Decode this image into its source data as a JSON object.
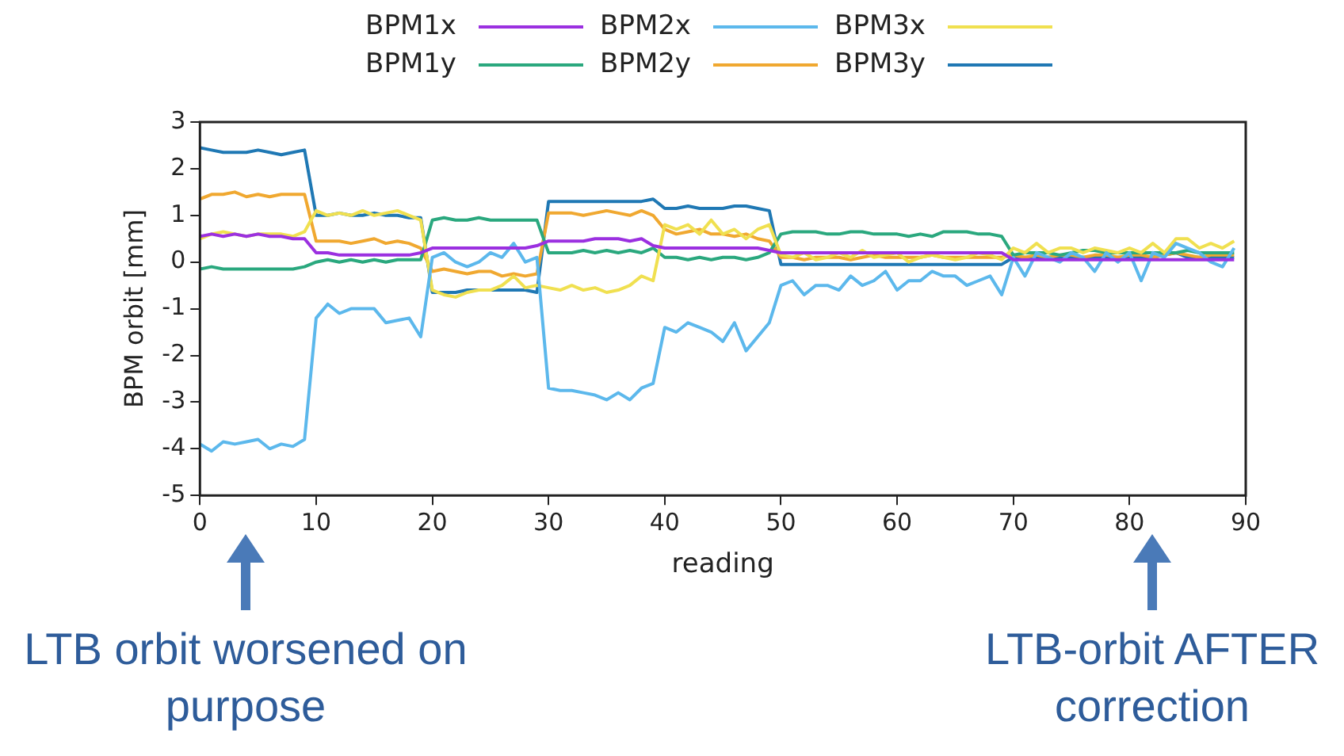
{
  "chart_data": {
    "type": "line",
    "xlabel": "reading",
    "ylabel": "BPM orbit [mm]",
    "xlim": [
      0,
      90
    ],
    "xticks": [
      0,
      10,
      20,
      30,
      40,
      50,
      60,
      70,
      80,
      90
    ],
    "ylim": [
      -5,
      3
    ],
    "yticks": [
      -5,
      -4,
      -3,
      -2,
      -1,
      0,
      1,
      2,
      3
    ],
    "grid": false,
    "legend": "top",
    "marker": "none",
    "line_style": "solid",
    "x": [
      0,
      1,
      2,
      3,
      4,
      5,
      6,
      7,
      8,
      9,
      10,
      11,
      12,
      13,
      14,
      15,
      16,
      17,
      18,
      19,
      20,
      21,
      22,
      23,
      24,
      25,
      26,
      27,
      28,
      29,
      30,
      31,
      32,
      33,
      34,
      35,
      36,
      37,
      38,
      39,
      40,
      41,
      42,
      43,
      44,
      45,
      46,
      47,
      48,
      49,
      50,
      51,
      52,
      53,
      54,
      55,
      56,
      57,
      58,
      59,
      60,
      61,
      62,
      63,
      64,
      65,
      66,
      67,
      68,
      69,
      70,
      71,
      72,
      73,
      74,
      75,
      76,
      77,
      78,
      79,
      80,
      81,
      82,
      83,
      84,
      85,
      86,
      87,
      88,
      89
    ],
    "series": [
      {
        "name": "BPM1x",
        "color": "#9b30e0",
        "values": [
          0.55,
          0.6,
          0.55,
          0.6,
          0.55,
          0.6,
          0.55,
          0.55,
          0.5,
          0.5,
          0.2,
          0.2,
          0.15,
          0.15,
          0.15,
          0.15,
          0.15,
          0.15,
          0.15,
          0.2,
          0.3,
          0.3,
          0.3,
          0.3,
          0.3,
          0.3,
          0.3,
          0.3,
          0.3,
          0.35,
          0.45,
          0.45,
          0.45,
          0.45,
          0.5,
          0.5,
          0.5,
          0.45,
          0.5,
          0.35,
          0.3,
          0.3,
          0.3,
          0.3,
          0.3,
          0.3,
          0.3,
          0.3,
          0.3,
          0.25,
          0.2,
          0.2,
          0.2,
          0.2,
          0.2,
          0.2,
          0.2,
          0.2,
          0.2,
          0.2,
          0.2,
          0.2,
          0.2,
          0.2,
          0.2,
          0.2,
          0.2,
          0.2,
          0.2,
          0.2,
          0.05,
          0.05,
          0.05,
          0.05,
          0.05,
          0.05,
          0.05,
          0.05,
          0.05,
          0.05,
          0.05,
          0.05,
          0.05,
          0.05,
          0.05,
          0.05,
          0.05,
          0.05,
          0.05,
          0.05
        ]
      },
      {
        "name": "BPM2x",
        "color": "#5cb8ec",
        "values": [
          -3.9,
          -4.05,
          -3.85,
          -3.9,
          -3.85,
          -3.8,
          -4.0,
          -3.9,
          -3.95,
          -3.8,
          -1.2,
          -0.9,
          -1.1,
          -1.0,
          -1.0,
          -1.0,
          -1.3,
          -1.25,
          -1.2,
          -1.6,
          0.1,
          0.2,
          0.0,
          -0.1,
          0.0,
          0.2,
          0.1,
          0.4,
          0.0,
          0.1,
          -2.7,
          -2.75,
          -2.75,
          -2.8,
          -2.85,
          -2.95,
          -2.8,
          -2.95,
          -2.7,
          -2.6,
          -1.4,
          -1.5,
          -1.3,
          -1.4,
          -1.5,
          -1.7,
          -1.3,
          -1.9,
          -1.6,
          -1.3,
          -0.5,
          -0.4,
          -0.7,
          -0.5,
          -0.5,
          -0.6,
          -0.3,
          -0.5,
          -0.4,
          -0.2,
          -0.6,
          -0.4,
          -0.4,
          -0.2,
          -0.3,
          -0.3,
          -0.5,
          -0.4,
          -0.3,
          -0.7,
          0.1,
          -0.3,
          0.2,
          0.1,
          0.0,
          0.2,
          0.1,
          -0.2,
          0.2,
          0.0,
          0.2,
          -0.4,
          0.2,
          0.1,
          0.4,
          0.3,
          0.2,
          0.0,
          -0.1,
          0.3
        ]
      },
      {
        "name": "BPM3x",
        "color": "#f0e050",
        "values": [
          0.5,
          0.6,
          0.65,
          0.6,
          0.55,
          0.6,
          0.6,
          0.6,
          0.55,
          0.65,
          1.1,
          1.0,
          1.05,
          1.0,
          1.1,
          1.0,
          1.05,
          1.1,
          1.0,
          0.9,
          -0.6,
          -0.7,
          -0.75,
          -0.65,
          -0.6,
          -0.6,
          -0.5,
          -0.3,
          -0.55,
          -0.5,
          -0.55,
          -0.6,
          -0.5,
          -0.6,
          -0.55,
          -0.65,
          -0.6,
          -0.5,
          -0.3,
          -0.4,
          0.8,
          0.7,
          0.8,
          0.6,
          0.9,
          0.6,
          0.7,
          0.5,
          0.7,
          0.8,
          0.15,
          0.1,
          0.2,
          0.05,
          0.1,
          0.2,
          0.1,
          0.25,
          0.1,
          0.15,
          0.2,
          0.0,
          0.1,
          0.15,
          0.1,
          0.05,
          0.1,
          0.2,
          0.15,
          0.05,
          0.3,
          0.2,
          0.4,
          0.2,
          0.3,
          0.3,
          0.2,
          0.3,
          0.25,
          0.2,
          0.3,
          0.2,
          0.4,
          0.2,
          0.5,
          0.5,
          0.3,
          0.4,
          0.3,
          0.45
        ]
      },
      {
        "name": "BPM1y",
        "color": "#2aa87e",
        "values": [
          -0.15,
          -0.1,
          -0.15,
          -0.15,
          -0.15,
          -0.15,
          -0.15,
          -0.15,
          -0.15,
          -0.1,
          0.0,
          0.05,
          0.0,
          0.05,
          0.0,
          0.05,
          0.0,
          0.05,
          0.05,
          0.05,
          0.9,
          0.95,
          0.9,
          0.9,
          0.95,
          0.9,
          0.9,
          0.9,
          0.9,
          0.9,
          0.2,
          0.2,
          0.2,
          0.25,
          0.2,
          0.25,
          0.2,
          0.25,
          0.2,
          0.3,
          0.1,
          0.1,
          0.05,
          0.1,
          0.05,
          0.1,
          0.1,
          0.05,
          0.1,
          0.2,
          0.6,
          0.65,
          0.65,
          0.65,
          0.6,
          0.6,
          0.65,
          0.65,
          0.6,
          0.6,
          0.6,
          0.55,
          0.6,
          0.55,
          0.65,
          0.65,
          0.65,
          0.6,
          0.6,
          0.55,
          0.15,
          0.2,
          0.2,
          0.2,
          0.15,
          0.2,
          0.25,
          0.25,
          0.2,
          0.2,
          0.2,
          0.2,
          0.2,
          0.2,
          0.2,
          0.25,
          0.2,
          0.2,
          0.2,
          0.2
        ]
      },
      {
        "name": "BPM2y",
        "color": "#f0a830",
        "values": [
          1.35,
          1.45,
          1.45,
          1.5,
          1.4,
          1.45,
          1.4,
          1.45,
          1.45,
          1.45,
          0.45,
          0.45,
          0.45,
          0.4,
          0.45,
          0.5,
          0.4,
          0.45,
          0.4,
          0.3,
          -0.2,
          -0.15,
          -0.2,
          -0.25,
          -0.2,
          -0.2,
          -0.3,
          -0.25,
          -0.3,
          -0.25,
          1.05,
          1.05,
          1.05,
          1.0,
          1.05,
          1.1,
          1.05,
          1.0,
          1.1,
          1.0,
          0.7,
          0.6,
          0.65,
          0.7,
          0.6,
          0.6,
          0.55,
          0.6,
          0.5,
          0.45,
          0.1,
          0.1,
          0.05,
          0.1,
          0.1,
          0.1,
          0.05,
          0.1,
          0.15,
          0.1,
          0.1,
          0.1,
          0.1,
          0.15,
          0.1,
          0.1,
          0.1,
          0.1,
          0.1,
          0.1,
          0.15,
          0.1,
          0.15,
          0.1,
          0.15,
          0.15,
          0.1,
          0.15,
          0.15,
          0.1,
          0.15,
          0.15,
          0.1,
          0.15,
          0.2,
          0.15,
          0.1,
          0.15,
          0.15,
          0.15
        ]
      },
      {
        "name": "BPM3y",
        "color": "#1f78b4",
        "values": [
          2.45,
          2.4,
          2.35,
          2.35,
          2.35,
          2.4,
          2.35,
          2.3,
          2.35,
          2.4,
          1.0,
          1.0,
          1.05,
          1.0,
          1.0,
          1.05,
          1.0,
          1.0,
          0.95,
          0.95,
          -0.65,
          -0.65,
          -0.65,
          -0.6,
          -0.6,
          -0.6,
          -0.6,
          -0.6,
          -0.6,
          -0.65,
          1.3,
          1.3,
          1.3,
          1.3,
          1.3,
          1.3,
          1.3,
          1.3,
          1.3,
          1.35,
          1.15,
          1.15,
          1.2,
          1.15,
          1.15,
          1.15,
          1.2,
          1.2,
          1.15,
          1.1,
          -0.05,
          -0.05,
          -0.05,
          -0.05,
          -0.05,
          -0.05,
          -0.05,
          -0.05,
          -0.05,
          -0.05,
          -0.05,
          -0.05,
          -0.05,
          -0.05,
          -0.05,
          -0.05,
          -0.05,
          -0.05,
          -0.05,
          -0.05,
          0.1,
          0.1,
          0.1,
          0.1,
          0.1,
          0.1,
          0.1,
          0.1,
          0.1,
          0.1,
          0.1,
          0.1,
          0.1,
          0.15,
          0.2,
          0.1,
          0.1,
          0.1,
          0.1,
          0.1
        ]
      }
    ],
    "annotations": [
      "LTB orbit worsened on purpose",
      "LTB-orbit AFTER correction"
    ]
  }
}
